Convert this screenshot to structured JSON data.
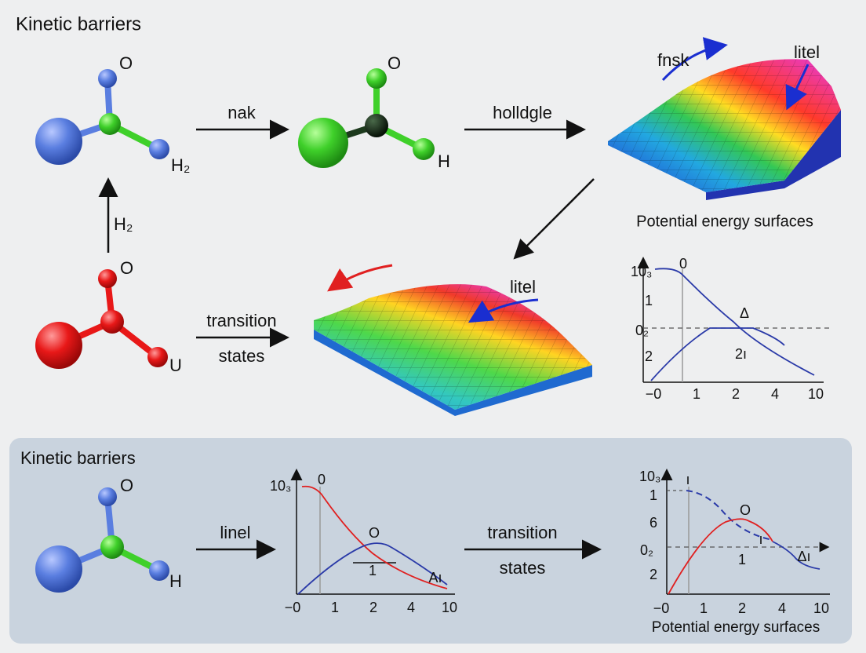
{
  "top_section": {
    "title": "Kinetic barriers",
    "molecule_1": {
      "labels": [
        "O",
        "H₂"
      ]
    },
    "arrow_1": "nak",
    "molecule_2": {
      "labels": [
        "O",
        "H"
      ]
    },
    "arrow_2": "holldgle",
    "surface_1": {
      "labels": [
        "fnsk",
        "litel"
      ],
      "caption": "Potential energy surfaces"
    },
    "arrow_up": "H₂",
    "molecule_3": {
      "labels": [
        "O",
        "U"
      ]
    },
    "arrow_3": [
      "transition",
      "states"
    ],
    "surface_2": {
      "labels": [
        "litel"
      ]
    },
    "plot": {
      "y_labels": [
        "10₃",
        "1",
        "0₂",
        "2"
      ],
      "x_labels": [
        "−0",
        "1",
        "2",
        "4",
        "10"
      ],
      "annotations": [
        "0",
        "Δ",
        "2ı"
      ]
    }
  },
  "bottom_section": {
    "title": "Kinetic barriers",
    "molecule": {
      "labels": [
        "O",
        "H"
      ]
    },
    "arrow_1": "linel",
    "plot_1": {
      "y_labels": [
        "10₃"
      ],
      "x_labels": [
        "−0",
        "1",
        "2",
        "4",
        "10"
      ],
      "annotations": [
        "0",
        "O",
        "1",
        "Aı"
      ]
    },
    "arrow_2": [
      "transition",
      "states"
    ],
    "plot_2": {
      "y_labels": [
        "10₃",
        "1",
        "6",
        "0₂",
        "2"
      ],
      "x_labels": [
        "−0",
        "1",
        "2",
        "4",
        "10"
      ],
      "annotations": [
        "ı",
        "O",
        "ı",
        "1",
        "Δı"
      ],
      "caption": "Potential energy surfaces"
    }
  }
}
